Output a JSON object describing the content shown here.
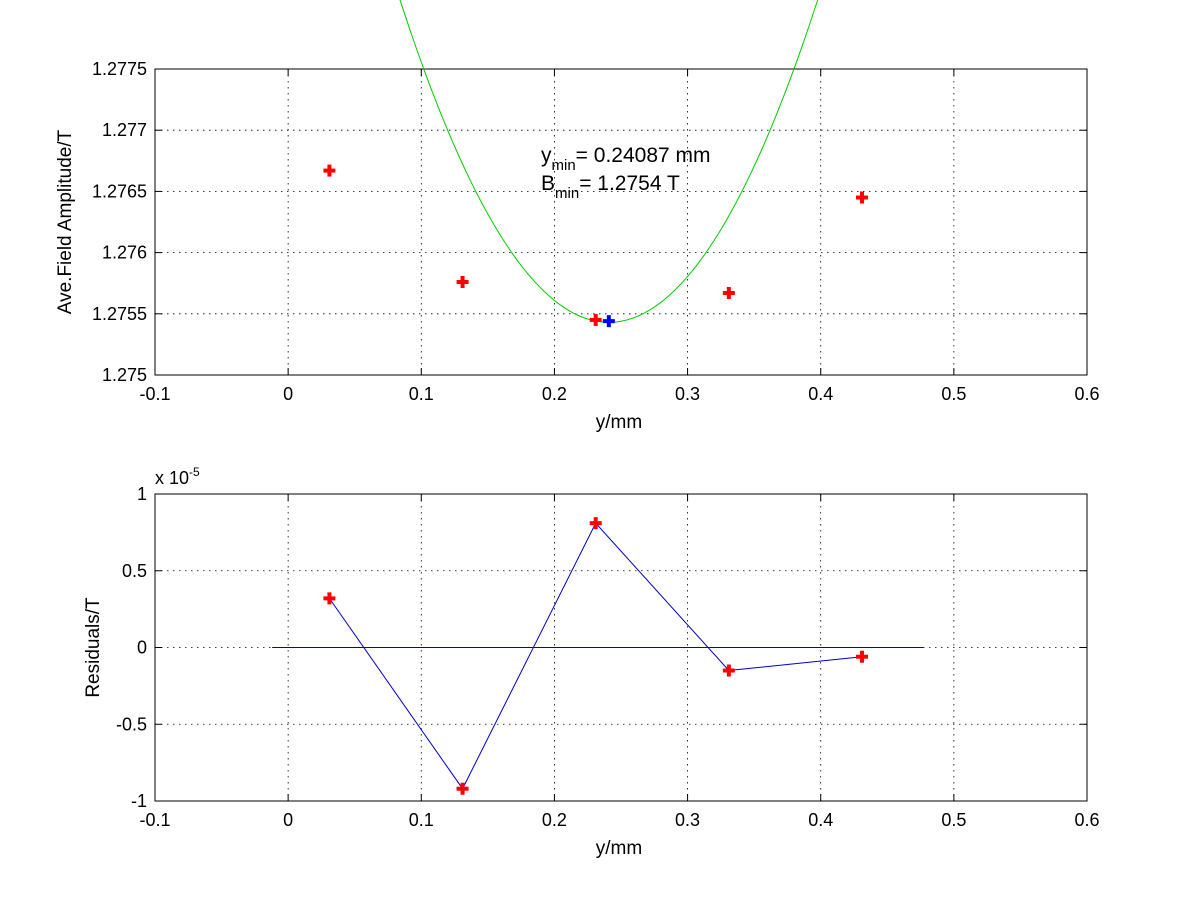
{
  "colors": {
    "fit_curve": "#00cc00",
    "data_marker": "#ff0000",
    "min_marker": "#0000ff",
    "residual_line": "#0000cc",
    "zero_line": "#0000cc"
  },
  "chart_data": [
    {
      "type": "line",
      "title": "",
      "xlabel": "y/mm",
      "ylabel": "Ave.Field Amplitude/T",
      "xlim": [
        -0.1,
        0.6
      ],
      "ylim": [
        1.275,
        1.2775
      ],
      "grid": true,
      "xticks": [
        -0.1,
        0,
        0.1,
        0.2,
        0.3,
        0.4,
        0.5,
        0.6
      ],
      "xtick_labels": [
        "-0.1",
        "0",
        "0.1",
        "0.2",
        "0.3",
        "0.4",
        "0.5",
        "0.6"
      ],
      "yticks": [
        1.275,
        1.2755,
        1.276,
        1.2765,
        1.277,
        1.2775
      ],
      "ytick_labels": [
        "1.275",
        "1.2755",
        "1.276",
        "1.2765",
        "1.277",
        "1.2775"
      ],
      "fit": {
        "type": "quadratic",
        "x_min": 0.24087,
        "y_min": 1.27543,
        "curvature": 0.1071,
        "x_range": [
          -0.015,
          0.475
        ]
      },
      "series": [
        {
          "marker": "plus",
          "x": [
            0.031,
            0.131,
            0.231,
            0.331,
            0.431
          ],
          "y": [
            1.27667,
            1.27576,
            1.27545,
            1.27567,
            1.27645
          ]
        }
      ],
      "min_point": {
        "x": 0.24087,
        "y": 1.27544,
        "marker": "plus"
      },
      "annotations": {
        "ymin_main": "y",
        "ymin_sub": "min",
        "ymin_value": "= 0.24087 mm",
        "bmin_main": "B",
        "bmin_sub": "min",
        "bmin_value": "= 1.2754 T"
      }
    },
    {
      "type": "line",
      "title": "",
      "xlabel": "y/mm",
      "ylabel": "Residuals/T",
      "xlim": [
        -0.1,
        0.6
      ],
      "ylim": [
        -1,
        1
      ],
      "grid": true,
      "exponent_label": "x 10",
      "exponent_power": "-5",
      "xticks": [
        -0.1,
        0,
        0.1,
        0.2,
        0.3,
        0.4,
        0.5,
        0.6
      ],
      "xtick_labels": [
        "-0.1",
        "0",
        "0.1",
        "0.2",
        "0.3",
        "0.4",
        "0.5",
        "0.6"
      ],
      "yticks": [
        -1,
        -0.5,
        0,
        0.5,
        1
      ],
      "ytick_labels": [
        "-1",
        "-0.5",
        "0",
        "0.5",
        "1"
      ],
      "zero_line": {
        "y": 0,
        "x_range": [
          -0.012,
          0.477
        ]
      },
      "series": [
        {
          "marker": "plus",
          "x": [
            0.031,
            0.131,
            0.231,
            0.331,
            0.431
          ],
          "y": [
            0.32,
            -0.92,
            0.81,
            -0.15,
            -0.06
          ]
        }
      ]
    }
  ]
}
